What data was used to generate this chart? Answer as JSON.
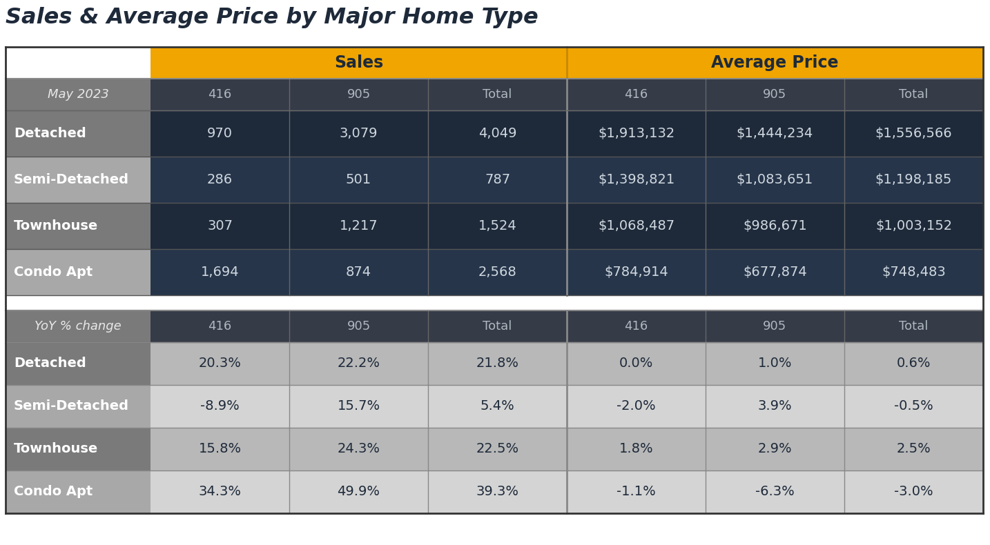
{
  "title": "Sales & Average Price by Major Home Type",
  "title_color": "#1e2a3a",
  "background_color": "#ffffff",
  "header_bg_color": "#f0a500",
  "header_text_color": "#1e2a3a",
  "subheader_bg_color": "#353b47",
  "subheader_text_color": "#b0b8c0",
  "row_label_bg_dark": "#7a7a7a",
  "row_label_bg_light": "#a8a8a8",
  "data_bg_dark": "#1e2a3a",
  "data_bg_light": "#26354a",
  "yoy_data_bg_dark": "#b8b8b8",
  "yoy_data_bg_light": "#d4d4d4",
  "row_label_text": "#ffffff",
  "data_text_light": "#d0d8e0",
  "yoy_text_dark": "#1e2a3a",
  "col_groups": [
    "Sales",
    "Average Price"
  ],
  "sub_cols": [
    "416",
    "905",
    "Total"
  ],
  "row_labels": [
    "Detached",
    "Semi-Detached",
    "Townhouse",
    "Condo Apt"
  ],
  "left_label_may": "May 2023",
  "left_label_yoy": "YoY % change",
  "sales_data": [
    [
      "970",
      "3,079",
      "4,049"
    ],
    [
      "286",
      "501",
      "787"
    ],
    [
      "307",
      "1,217",
      "1,524"
    ],
    [
      "1,694",
      "874",
      "2,568"
    ]
  ],
  "avg_price_data": [
    [
      "$1,913,132",
      "$1,444,234",
      "$1,556,566"
    ],
    [
      "$1,398,821",
      "$1,083,651",
      "$1,198,185"
    ],
    [
      "$1,068,487",
      "$986,671",
      "$1,003,152"
    ],
    [
      "$784,914",
      "$677,874",
      "$748,483"
    ]
  ],
  "sales_yoy_data": [
    [
      "20.3%",
      "22.2%",
      "21.8%"
    ],
    [
      "-8.9%",
      "15.7%",
      "5.4%"
    ],
    [
      "15.8%",
      "24.3%",
      "22.5%"
    ],
    [
      "34.3%",
      "49.9%",
      "39.3%"
    ]
  ],
  "avg_price_yoy_data": [
    [
      "0.0%",
      "1.0%",
      "0.6%"
    ],
    [
      "-2.0%",
      "3.9%",
      "-0.5%"
    ],
    [
      "1.8%",
      "2.9%",
      "2.5%"
    ],
    [
      "-1.1%",
      "-6.3%",
      "-3.0%"
    ]
  ]
}
